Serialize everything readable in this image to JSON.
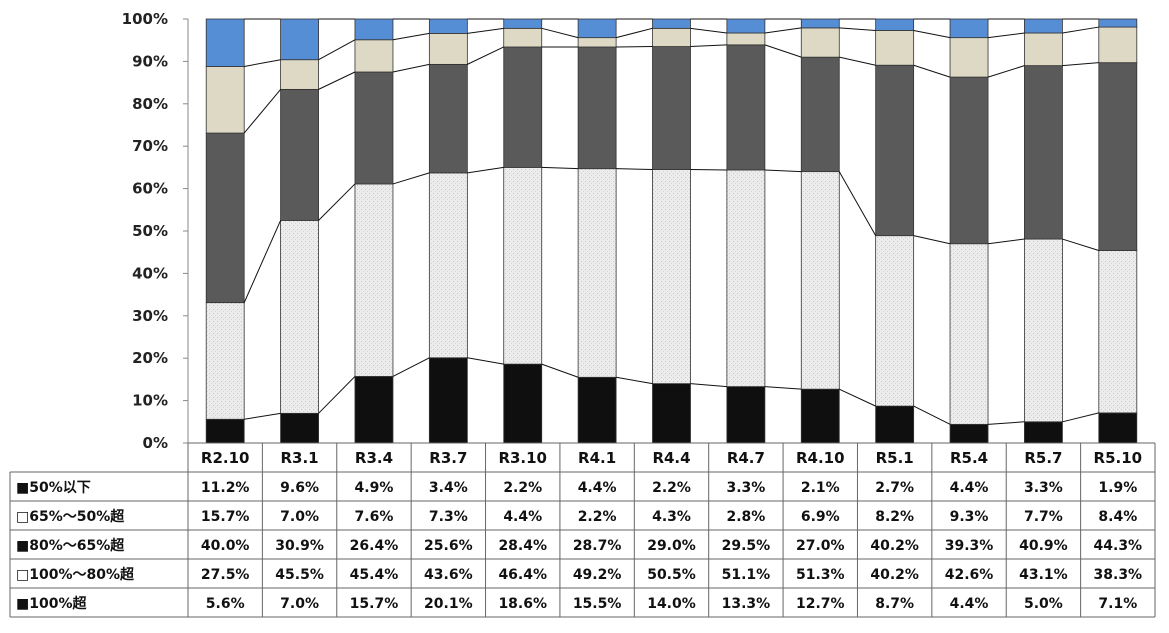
{
  "chart_data": {
    "type": "bar",
    "stacked": true,
    "orientation": "vertical",
    "ylim": [
      0,
      100
    ],
    "yticks": [
      "0%",
      "10%",
      "20%",
      "30%",
      "40%",
      "50%",
      "60%",
      "70%",
      "80%",
      "90%",
      "100%"
    ],
    "categories": [
      "R2.10",
      "R3.1",
      "R3.4",
      "R3.7",
      "R3.10",
      "R4.1",
      "R4.4",
      "R4.7",
      "R4.10",
      "R5.1",
      "R5.4",
      "R5.7",
      "R5.10"
    ],
    "series": [
      {
        "name": "■100%超",
        "fill": "#0f0f0f",
        "values": [
          5.6,
          7.0,
          15.7,
          20.1,
          18.6,
          15.5,
          14.0,
          13.3,
          12.7,
          8.7,
          4.4,
          5.0,
          7.1
        ],
        "labels": [
          "5.6%",
          "7.0%",
          "15.7%",
          "20.1%",
          "18.6%",
          "15.5%",
          "14.0%",
          "13.3%",
          "12.7%",
          "8.7%",
          "4.4%",
          "5.0%",
          "7.1%"
        ]
      },
      {
        "name": "□100%～80%超",
        "fill": "#ececec",
        "values": [
          27.5,
          45.5,
          45.4,
          43.6,
          46.4,
          49.2,
          50.5,
          51.1,
          51.3,
          40.2,
          42.6,
          43.1,
          38.3
        ],
        "labels": [
          "27.5%",
          "45.5%",
          "45.4%",
          "43.6%",
          "46.4%",
          "49.2%",
          "50.5%",
          "51.1%",
          "51.3%",
          "40.2%",
          "42.6%",
          "43.1%",
          "38.3%"
        ]
      },
      {
        "name": "■80%～65%超",
        "fill": "#5a5a5a",
        "values": [
          40.0,
          30.9,
          26.4,
          25.6,
          28.4,
          28.7,
          29.0,
          29.5,
          27.0,
          40.2,
          39.3,
          40.9,
          44.3
        ],
        "labels": [
          "40.0%",
          "30.9%",
          "26.4%",
          "25.6%",
          "28.4%",
          "28.7%",
          "29.0%",
          "29.5%",
          "27.0%",
          "40.2%",
          "39.3%",
          "40.9%",
          "44.3%"
        ]
      },
      {
        "name": "□65%～50%超",
        "fill": "#ddd9c4",
        "values": [
          15.7,
          7.0,
          7.6,
          7.3,
          4.4,
          2.2,
          4.3,
          2.8,
          6.9,
          8.2,
          9.3,
          7.7,
          8.4
        ],
        "labels": [
          "15.7%",
          "7.0%",
          "7.6%",
          "7.3%",
          "4.4%",
          "2.2%",
          "4.3%",
          "2.8%",
          "6.9%",
          "8.2%",
          "9.3%",
          "7.7%",
          "8.4%"
        ]
      },
      {
        "name": "■50%以下",
        "fill": "#558ed5",
        "values": [
          11.2,
          9.6,
          4.9,
          3.4,
          2.2,
          4.4,
          2.2,
          3.3,
          2.1,
          2.7,
          4.4,
          3.3,
          1.9
        ],
        "labels": [
          "11.2%",
          "9.6%",
          "4.9%",
          "3.4%",
          "2.2%",
          "4.4%",
          "2.2%",
          "3.3%",
          "2.1%",
          "2.7%",
          "4.4%",
          "3.3%",
          "1.9%"
        ]
      }
    ],
    "table_row_order": [
      "■50%以下",
      "□65%～50%超",
      "■80%～65%超",
      "□100%～80%超",
      "■100%超"
    ],
    "series_lines": true,
    "grid": false,
    "legend": "data-table"
  }
}
